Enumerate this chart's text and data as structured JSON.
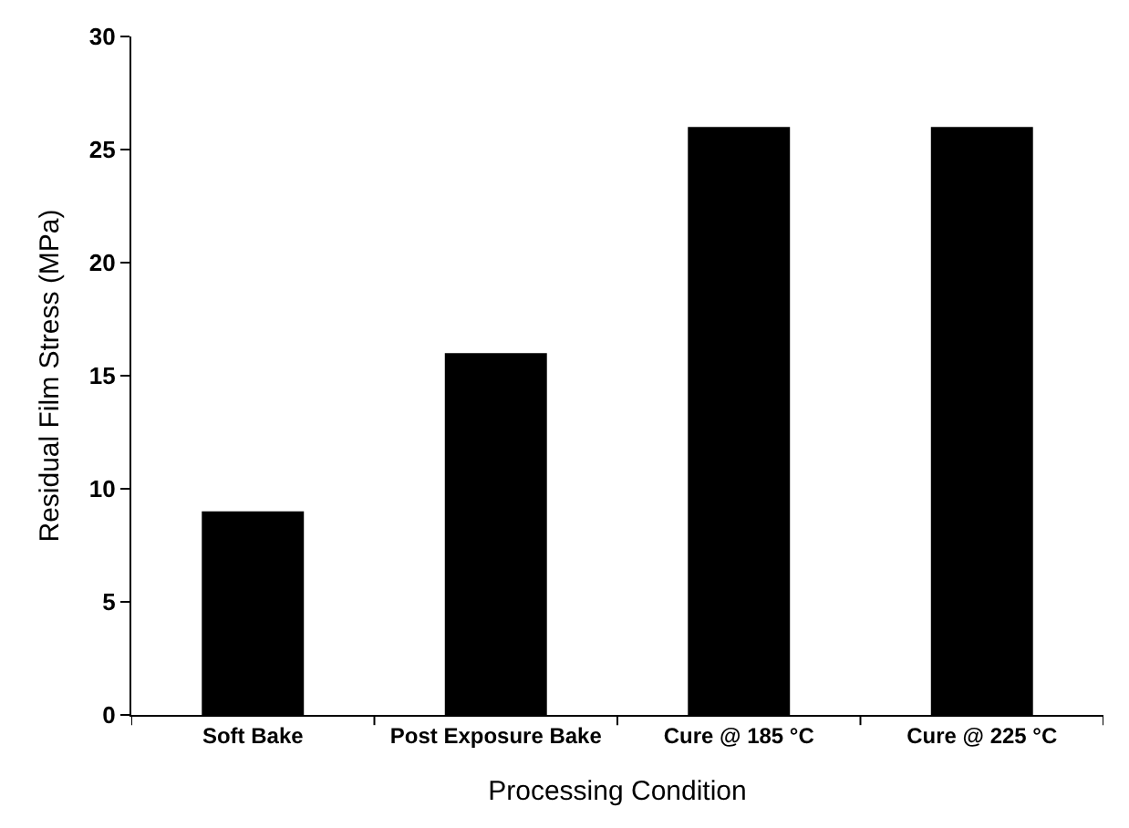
{
  "chart_data": {
    "type": "bar",
    "xlabel": "Processing Condition",
    "ylabel": "Residual Film Stress (MPa)",
    "categories": [
      "Soft Bake",
      "Post Exposure Bake",
      "Cure @ 185 °C",
      "Cure @ 225 °C"
    ],
    "values": [
      9,
      16,
      26,
      26
    ],
    "color": "#000000",
    "ylim": [
      0,
      30
    ],
    "yticks": [
      0,
      5,
      10,
      15,
      20,
      25,
      30
    ],
    "grid": false,
    "legend": false
  }
}
